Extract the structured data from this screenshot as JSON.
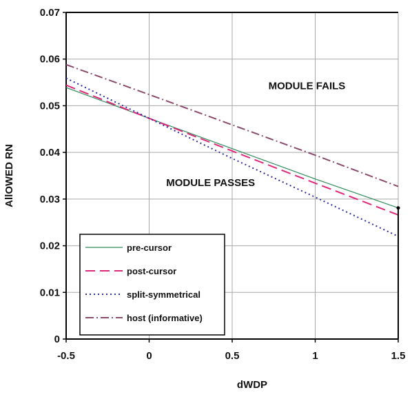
{
  "chart_data": {
    "type": "line",
    "title": "",
    "xlabel": "dWDP",
    "ylabel": "AllOWED RN",
    "xlim": [
      -0.5,
      1.5
    ],
    "ylim": [
      0,
      0.07
    ],
    "xticks": [
      -0.5,
      0,
      0.5,
      1,
      1.5
    ],
    "xtick_labels": [
      "-0.5",
      "0",
      "0.5",
      "1",
      "1.5"
    ],
    "yticks": [
      0,
      0.01,
      0.02,
      0.03,
      0.04,
      0.05,
      0.06,
      0.07
    ],
    "ytick_labels": [
      "0",
      "0.01",
      "0.02",
      "0.03",
      "0.04",
      "0.05",
      "0.06",
      "0.07"
    ],
    "grid": true,
    "legend_position": "bottom-left",
    "series": [
      {
        "name": "pre-cursor",
        "color": "#2e8b57",
        "style": "solid",
        "x": [
          -0.5,
          0,
          0.5,
          1,
          1.5
        ],
        "y": [
          0.0539,
          0.0473,
          0.0408,
          0.0343,
          0.0281
        ]
      },
      {
        "name": "post-cursor",
        "color": "#e0287a",
        "style": "dashed",
        "x": [
          -0.5,
          0,
          0.5,
          1,
          1.5
        ],
        "y": [
          0.0544,
          0.0473,
          0.0403,
          0.0334,
          0.0266
        ]
      },
      {
        "name": "split-symmetrical",
        "color": "#2a2aa0",
        "style": "dotted",
        "x": [
          -0.5,
          0,
          0.5,
          1,
          1.5
        ],
        "y": [
          0.0559,
          0.0473,
          0.0387,
          0.0304,
          0.022
        ]
      },
      {
        "name": "host (informative)",
        "color": "#8b4a6b",
        "style": "dashdot",
        "x": [
          -0.5,
          0,
          0.5,
          1,
          1.5
        ],
        "y": [
          0.0588,
          0.0524,
          0.0459,
          0.0394,
          0.0327
        ]
      }
    ],
    "reference_line": {
      "x": 1.5,
      "y_from": 0,
      "y_to": 0.0281
    },
    "annotations": [
      {
        "text": "MODULE FAILS",
        "x": 0.95,
        "y": 0.0535
      },
      {
        "text": "MODULE PASSES",
        "x": 0.37,
        "y": 0.0328
      }
    ]
  }
}
